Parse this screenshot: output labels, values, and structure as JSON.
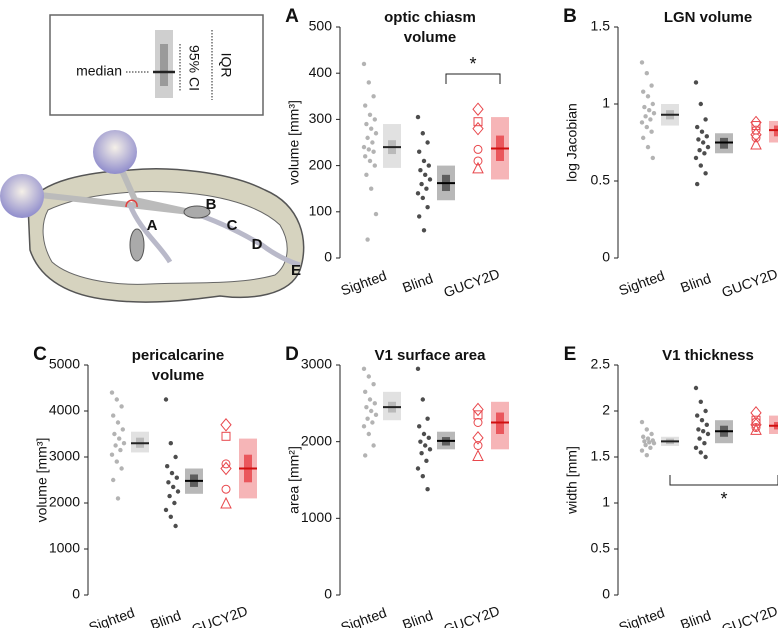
{
  "chart_data": [
    {
      "type": "strip",
      "panel": "A",
      "title": [
        "optic chiasm",
        "volume"
      ],
      "y_label": "volume [mm³]",
      "categories": [
        "Sighted",
        "Blind",
        "GUCY2D"
      ],
      "ylim": [
        0,
        500
      ],
      "yticks": [
        0,
        100,
        200,
        300,
        400,
        500
      ],
      "significance": "*",
      "groups": [
        {
          "color": "#b3b3b3",
          "median_color": "#222222",
          "points": [
            420,
            380,
            350,
            330,
            310,
            300,
            290,
            280,
            270,
            260,
            250,
            240,
            235,
            230,
            220,
            210,
            200,
            180,
            150,
            95,
            40
          ],
          "median": 240,
          "ci": [
            225,
            255
          ],
          "iqr": [
            195,
            290
          ]
        },
        {
          "color": "#4d4d4d",
          "median_color": "#000000",
          "points": [
            305,
            270,
            250,
            230,
            210,
            200,
            190,
            180,
            170,
            160,
            150,
            140,
            130,
            110,
            90,
            60
          ],
          "median": 162,
          "ci": [
            145,
            180
          ],
          "iqr": [
            125,
            200
          ]
        },
        {
          "color": "#e8474c",
          "median_color": "#d01010",
          "points": [
            322,
            295,
            235,
            280,
            210,
            195
          ],
          "median": 237,
          "ci": [
            210,
            265
          ],
          "iqr": [
            170,
            305
          ]
        }
      ]
    },
    {
      "type": "strip",
      "panel": "B",
      "title": [
        "LGN volume"
      ],
      "y_label": "log Jacobian",
      "categories": [
        "Sighted",
        "Blind",
        "GUCY2D"
      ],
      "ylim": [
        0,
        1.5
      ],
      "yticks": [
        0,
        0.5,
        1,
        1.5
      ],
      "groups": [
        {
          "color": "#b3b3b3",
          "median_color": "#222222",
          "points": [
            1.27,
            1.2,
            1.12,
            1.08,
            1.05,
            1.0,
            0.98,
            0.96,
            0.94,
            0.92,
            0.9,
            0.88,
            0.85,
            0.82,
            0.78,
            0.72,
            0.65
          ],
          "median": 0.93,
          "ci": [
            0.9,
            0.96
          ],
          "iqr": [
            0.86,
            1.0
          ]
        },
        {
          "color": "#4d4d4d",
          "median_color": "#000000",
          "points": [
            1.14,
            1.0,
            0.9,
            0.85,
            0.82,
            0.79,
            0.77,
            0.75,
            0.72,
            0.7,
            0.68,
            0.65,
            0.6,
            0.55,
            0.48
          ],
          "median": 0.75,
          "ci": [
            0.71,
            0.78
          ],
          "iqr": [
            0.68,
            0.81
          ]
        },
        {
          "color": "#e8474c",
          "median_color": "#d01010",
          "points": [
            0.88,
            0.86,
            0.83,
            0.8,
            0.78,
            0.74
          ],
          "median": 0.83,
          "ci": [
            0.79,
            0.86
          ],
          "iqr": [
            0.75,
            0.89
          ]
        }
      ]
    },
    {
      "type": "strip",
      "panel": "C",
      "title": [
        "pericalcarine",
        "volume"
      ],
      "y_label": "volume [mm³]",
      "categories": [
        "Sighted",
        "Blind",
        "GUCY2D"
      ],
      "ylim": [
        0,
        5000
      ],
      "yticks": [
        0,
        1000,
        2000,
        3000,
        4000,
        5000
      ],
      "groups": [
        {
          "color": "#b3b3b3",
          "median_color": "#222222",
          "points": [
            4400,
            4250,
            4100,
            3900,
            3750,
            3600,
            3500,
            3400,
            3300,
            3250,
            3150,
            3050,
            2900,
            2750,
            2500,
            2100
          ],
          "median": 3300,
          "ci": [
            3200,
            3420
          ],
          "iqr": [
            3100,
            3550
          ]
        },
        {
          "color": "#4d4d4d",
          "median_color": "#000000",
          "points": [
            4250,
            3300,
            3000,
            2800,
            2650,
            2550,
            2450,
            2350,
            2250,
            2150,
            2000,
            1850,
            1700,
            1500
          ],
          "median": 2480,
          "ci": [
            2350,
            2620
          ],
          "iqr": [
            2200,
            2750
          ]
        },
        {
          "color": "#e8474c",
          "median_color": "#d01010",
          "points": [
            3700,
            3450,
            2850,
            2750,
            2300,
            2000
          ],
          "median": 2750,
          "ci": [
            2450,
            3050
          ],
          "iqr": [
            2100,
            3400
          ]
        }
      ]
    },
    {
      "type": "strip",
      "panel": "D",
      "title": [
        "V1 surface area"
      ],
      "y_label": "area [mm²]",
      "categories": [
        "Sighted",
        "Blind",
        "GUCY2D"
      ],
      "ylim": [
        0,
        3000
      ],
      "yticks": [
        0,
        1000,
        2000,
        3000
      ],
      "groups": [
        {
          "color": "#b3b3b3",
          "median_color": "#222222",
          "points": [
            2950,
            2850,
            2750,
            2650,
            2550,
            2500,
            2450,
            2400,
            2350,
            2300,
            2250,
            2200,
            2100,
            1950,
            1820
          ],
          "median": 2450,
          "ci": [
            2380,
            2520
          ],
          "iqr": [
            2280,
            2650
          ]
        },
        {
          "color": "#4d4d4d",
          "median_color": "#000000",
          "points": [
            2950,
            2550,
            2300,
            2200,
            2100,
            2050,
            2000,
            1950,
            1900,
            1850,
            1750,
            1650,
            1550,
            1380
          ],
          "median": 2010,
          "ci": [
            1950,
            2060
          ],
          "iqr": [
            1900,
            2130
          ]
        },
        {
          "color": "#e8474c",
          "median_color": "#d01010",
          "points": [
            2420,
            2350,
            2250,
            2050,
            1950,
            1820
          ],
          "median": 2250,
          "ci": [
            2100,
            2380
          ],
          "iqr": [
            1900,
            2520
          ]
        }
      ]
    },
    {
      "type": "strip",
      "panel": "E",
      "title": [
        "V1 thickness"
      ],
      "y_label": "width [mm]",
      "categories": [
        "Sighted",
        "Blind",
        "GUCY2D"
      ],
      "ylim": [
        0,
        2.5
      ],
      "yticks": [
        0,
        0.5,
        1,
        1.5,
        2,
        2.5
      ],
      "significance": "*",
      "groups": [
        {
          "color": "#b3b3b3",
          "median_color": "#222222",
          "points": [
            1.88,
            1.8,
            1.75,
            1.72,
            1.7,
            1.68,
            1.67,
            1.66,
            1.65,
            1.63,
            1.6,
            1.57,
            1.52
          ],
          "median": 1.67,
          "ci": [
            1.64,
            1.7
          ],
          "iqr": [
            1.62,
            1.72
          ]
        },
        {
          "color": "#4d4d4d",
          "median_color": "#000000",
          "points": [
            2.25,
            2.1,
            2.0,
            1.95,
            1.9,
            1.85,
            1.8,
            1.78,
            1.75,
            1.7,
            1.65,
            1.6,
            1.55,
            1.5
          ],
          "median": 1.78,
          "ci": [
            1.72,
            1.84
          ],
          "iqr": [
            1.65,
            1.9
          ]
        },
        {
          "color": "#e8474c",
          "median_color": "#d01010",
          "points": [
            1.98,
            1.9,
            1.88,
            1.85,
            1.82,
            1.8
          ],
          "median": 1.84,
          "ci": [
            1.8,
            1.88
          ],
          "iqr": [
            1.75,
            1.95
          ]
        }
      ]
    }
  ],
  "schematic": {
    "legend": {
      "median": "median",
      "ci": "95% CI",
      "iqr": "IQR"
    },
    "labels": [
      "A",
      "B",
      "C",
      "D",
      "E"
    ]
  }
}
